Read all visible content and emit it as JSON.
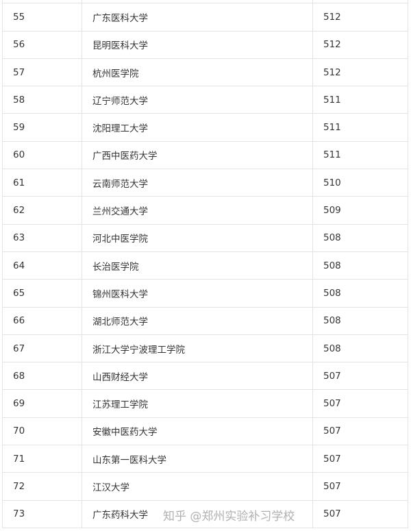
{
  "rows": [
    {
      "rank": "",
      "name": "",
      "score": ""
    },
    {
      "rank": "55",
      "name": "广东医科大学",
      "score": "512"
    },
    {
      "rank": "56",
      "name": "昆明医科大学",
      "score": "512"
    },
    {
      "rank": "57",
      "name": "杭州医学院",
      "score": "512"
    },
    {
      "rank": "58",
      "name": "辽宁师范大学",
      "score": "511"
    },
    {
      "rank": "59",
      "name": "沈阳理工大学",
      "score": "511"
    },
    {
      "rank": "60",
      "name": "广西中医药大学",
      "score": "511"
    },
    {
      "rank": "61",
      "name": "云南师范大学",
      "score": "510"
    },
    {
      "rank": "62",
      "name": "兰州交通大学",
      "score": "509"
    },
    {
      "rank": "63",
      "name": "河北中医学院",
      "score": "508"
    },
    {
      "rank": "64",
      "name": "长治医学院",
      "score": "508"
    },
    {
      "rank": "65",
      "name": "锦州医科大学",
      "score": "508"
    },
    {
      "rank": "66",
      "name": "湖北师范大学",
      "score": "508"
    },
    {
      "rank": "67",
      "name": "浙江大学宁波理工学院",
      "score": "508"
    },
    {
      "rank": "68",
      "name": "山西财经大学",
      "score": "507"
    },
    {
      "rank": "69",
      "name": "江苏理工学院",
      "score": "507"
    },
    {
      "rank": "70",
      "name": "安徽中医药大学",
      "score": "507"
    },
    {
      "rank": "71",
      "name": "山东第一医科大学",
      "score": "507"
    },
    {
      "rank": "72",
      "name": "江汉大学",
      "score": "507"
    },
    {
      "rank": "73",
      "name": "广东药科大学",
      "score": "507"
    }
  ],
  "watermark": "知乎 @郑州实验补习学校"
}
